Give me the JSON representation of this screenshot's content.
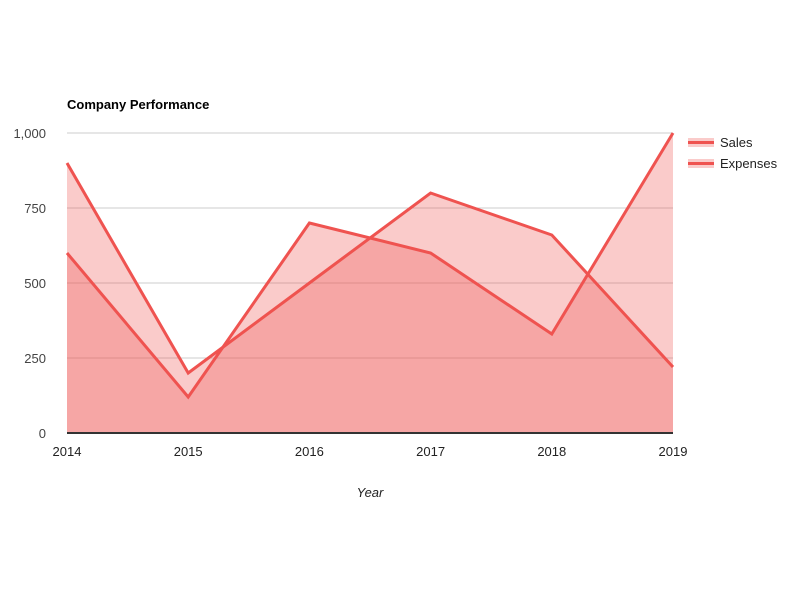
{
  "chart_data": {
    "type": "area",
    "title": "Company Performance",
    "xlabel": "Year",
    "x": [
      "2014",
      "2015",
      "2016",
      "2017",
      "2018",
      "2019"
    ],
    "series": [
      {
        "name": "Sales",
        "values": [
          900,
          200,
          500,
          800,
          660,
          220
        ]
      },
      {
        "name": "Expenses",
        "values": [
          600,
          120,
          700,
          600,
          330,
          1000
        ]
      }
    ],
    "ylim": [
      0,
      1000
    ],
    "yticks": [
      0,
      250,
      500,
      750,
      1000
    ],
    "ytick_labels": [
      "0",
      "250",
      "500",
      "750",
      "1,000"
    ],
    "legend_position": "right",
    "grid": true,
    "colors": {
      "series": [
        "#ef5350",
        "#ef5350"
      ],
      "area_opacity": 0.3,
      "gridline": "#cccccc",
      "baseline": "#333333",
      "y_label": "#444444",
      "x_label": "#222222",
      "legend_text": "#222222",
      "title": "#000000"
    }
  }
}
